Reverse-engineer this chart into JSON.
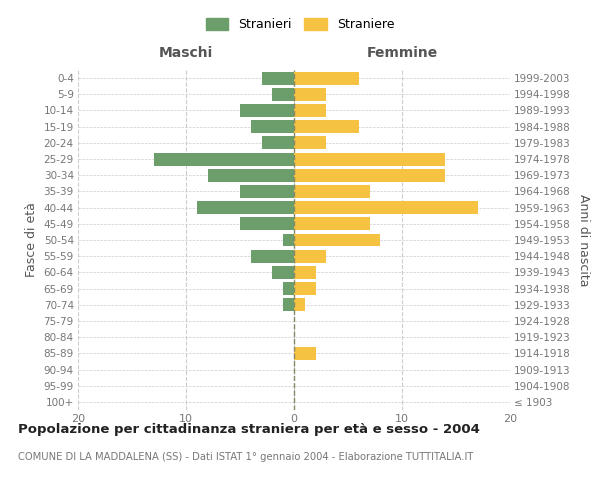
{
  "age_groups": [
    "100+",
    "95-99",
    "90-94",
    "85-89",
    "80-84",
    "75-79",
    "70-74",
    "65-69",
    "60-64",
    "55-59",
    "50-54",
    "45-49",
    "40-44",
    "35-39",
    "30-34",
    "25-29",
    "20-24",
    "15-19",
    "10-14",
    "5-9",
    "0-4"
  ],
  "birth_years": [
    "≤ 1903",
    "1904-1908",
    "1909-1913",
    "1914-1918",
    "1919-1923",
    "1924-1928",
    "1929-1933",
    "1934-1938",
    "1939-1943",
    "1944-1948",
    "1949-1953",
    "1954-1958",
    "1959-1963",
    "1964-1968",
    "1969-1973",
    "1974-1978",
    "1979-1983",
    "1984-1988",
    "1989-1993",
    "1994-1998",
    "1999-2003"
  ],
  "maschi": [
    0,
    0,
    0,
    0,
    0,
    0,
    1,
    1,
    2,
    4,
    1,
    5,
    9,
    5,
    8,
    13,
    3,
    4,
    5,
    2,
    3
  ],
  "femmine": [
    0,
    0,
    0,
    2,
    0,
    0,
    1,
    2,
    2,
    3,
    8,
    7,
    17,
    7,
    14,
    14,
    3,
    6,
    3,
    3,
    6
  ],
  "maschi_color": "#6b9e6b",
  "femmine_color": "#f5c242",
  "title": "Popolazione per cittadinanza straniera per età e sesso - 2004",
  "subtitle": "COMUNE DI LA MADDALENA (SS) - Dati ISTAT 1° gennaio 2004 - Elaborazione TUTTITALIA.IT",
  "xlabel_left": "Maschi",
  "xlabel_right": "Femmine",
  "ylabel_left": "Fasce di età",
  "ylabel_right": "Anni di nascita",
  "legend_maschi": "Stranieri",
  "legend_femmine": "Straniere",
  "xlim": 20,
  "background_color": "#ffffff",
  "grid_color": "#cccccc",
  "bar_height": 0.8
}
